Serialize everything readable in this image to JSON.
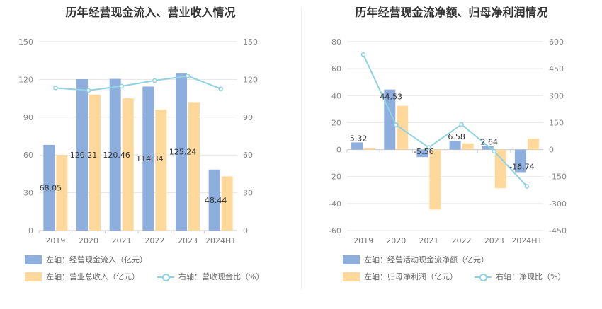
{
  "chart_data": [
    {
      "type": "bar",
      "title": "历年经营现金流入、营业收入情况",
      "categories": [
        "2019",
        "2020",
        "2021",
        "2022",
        "2023",
        "2024H1"
      ],
      "series": [
        {
          "name": "左轴：经营现金流入（亿元）",
          "axis": "left",
          "kind": "bar",
          "color": "#8eaedd",
          "values": [
            68.05,
            120.21,
            120.46,
            114.34,
            125.24,
            48.44
          ],
          "labels": [
            "68.05",
            "120.21",
            "120.46",
            "114.34",
            "125.24",
            "48.44"
          ]
        },
        {
          "name": "左轴：营业总收入（亿元）",
          "axis": "left",
          "kind": "bar",
          "color": "#fed99b",
          "values": [
            60,
            108,
            105,
            96,
            102,
            43
          ]
        },
        {
          "name": "右轴：营收现金比（%）",
          "axis": "right",
          "kind": "line",
          "color": "#8fd3e0",
          "values": [
            113.3,
            111.3,
            114.7,
            119.1,
            122.8,
            112.6
          ]
        }
      ],
      "left_axis": {
        "min": 0,
        "max": 150,
        "ticks": [
          0,
          30,
          60,
          90,
          120,
          150
        ]
      },
      "right_axis": {
        "min": 0,
        "max": 150,
        "ticks": [
          0,
          30,
          60,
          90,
          120,
          150
        ]
      },
      "grid": true,
      "legend": "bottom"
    },
    {
      "type": "bar",
      "title": "历年经营现金流净额、归母净利润情况",
      "categories": [
        "2019",
        "2020",
        "2021",
        "2022",
        "2023",
        "2024H1"
      ],
      "series": [
        {
          "name": "左轴：经营活动现金流净额（亿元）",
          "axis": "left",
          "kind": "bar",
          "color": "#8eaedd",
          "values": [
            5.32,
            44.53,
            -5.56,
            6.58,
            2.64,
            -16.74
          ],
          "labels": [
            "5.32",
            "44.53",
            "-5.56",
            "6.58",
            "2.64",
            "-16.74"
          ]
        },
        {
          "name": "左轴：归母净利润（亿元）",
          "axis": "left",
          "kind": "bar",
          "color": "#fed99b",
          "values": [
            1.0,
            32.5,
            -44.5,
            4.6,
            -28.6,
            8.2
          ]
        },
        {
          "name": "右轴：净现比（%）",
          "axis": "right",
          "kind": "line",
          "color": "#8fd3e0",
          "values": [
            528,
            137,
            12,
            140,
            -9,
            -204
          ]
        }
      ],
      "left_axis": {
        "min": -60,
        "max": 80,
        "ticks": [
          -60,
          -40,
          -20,
          0,
          20,
          40,
          60,
          80
        ]
      },
      "right_axis": {
        "min": -450,
        "max": 600,
        "ticks": [
          -450,
          -300,
          -150,
          0,
          150,
          300,
          450,
          600
        ]
      },
      "grid": true,
      "legend": "bottom"
    }
  ]
}
